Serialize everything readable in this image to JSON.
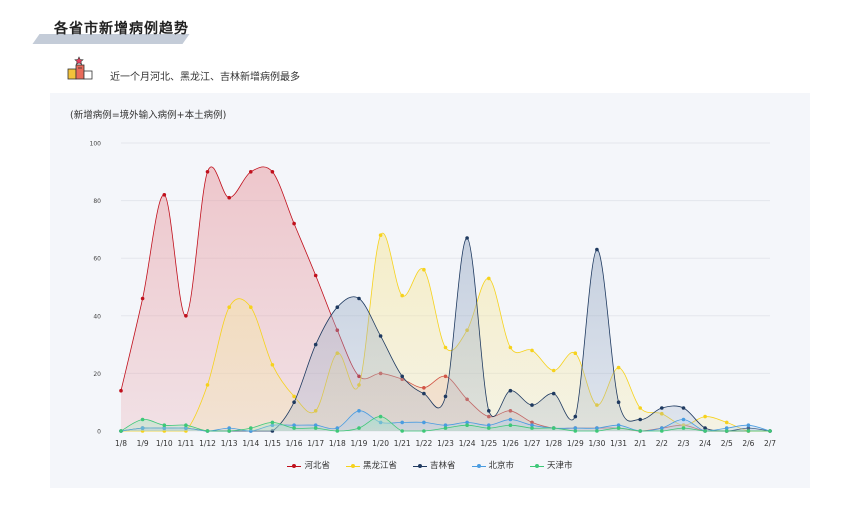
{
  "header": {
    "title": "各省市新增病例趋势"
  },
  "summary": {
    "text": "近一个月河北、黑龙江、吉林新增病例最多"
  },
  "panel": {
    "note": "(新增病例=境外输入病例+本土病例)"
  },
  "colors": {
    "title_stripe": "#c4ccd8",
    "panel_bg": "#f4f6fa",
    "grid": "#e3e6ec"
  },
  "chart_data": {
    "type": "area",
    "title": "",
    "xlabel": "",
    "ylabel": "",
    "ylim": [
      0,
      100
    ],
    "yticks": [
      0,
      20,
      40,
      60,
      80,
      100
    ],
    "grid": true,
    "legend_position": "bottom",
    "categories": [
      "1/8",
      "1/9",
      "1/10",
      "1/11",
      "1/12",
      "1/13",
      "1/14",
      "1/15",
      "1/16",
      "1/17",
      "1/18",
      "1/19",
      "1/20",
      "1/21",
      "1/22",
      "1/23",
      "1/24",
      "1/25",
      "1/26",
      "1/27",
      "1/28",
      "1/29",
      "1/30",
      "1/31",
      "2/1",
      "2/2",
      "2/3",
      "2/4",
      "2/5",
      "2/6",
      "2/7"
    ],
    "series": [
      {
        "name": "河北省",
        "color": "#c0101c",
        "fill": "#e8a0a6",
        "values": [
          14,
          46,
          82,
          40,
          90,
          81,
          90,
          90,
          72,
          54,
          35,
          19,
          20,
          18,
          15,
          19,
          11,
          5,
          7,
          3,
          1,
          1,
          1,
          1,
          0,
          1,
          2,
          0,
          0,
          0,
          0
        ]
      },
      {
        "name": "黑龙江省",
        "color": "#f6d21c",
        "fill": "#f6e7a0",
        "values": [
          0,
          0,
          0,
          0,
          16,
          43,
          43,
          23,
          12,
          7,
          27,
          16,
          68,
          47,
          56,
          29,
          35,
          53,
          29,
          28,
          21,
          27,
          9,
          22,
          8,
          6,
          2,
          5,
          3,
          0,
          0
        ]
      },
      {
        "name": "吉林省",
        "color": "#1f3a60",
        "fill": "#9fb0c8",
        "values": [
          0,
          1,
          1,
          1,
          0,
          0,
          0,
          0,
          10,
          30,
          43,
          46,
          33,
          19,
          13,
          12,
          67,
          7,
          14,
          9,
          13,
          5,
          63,
          10,
          4,
          8,
          8,
          1,
          0,
          1,
          0
        ]
      },
      {
        "name": "北京市",
        "color": "#4a9ce0",
        "fill": "#a8cdf2",
        "values": [
          0,
          1,
          1,
          1,
          0,
          1,
          0,
          2,
          2,
          2,
          1,
          7,
          3,
          3,
          3,
          2,
          3,
          2,
          4,
          2,
          1,
          1,
          1,
          2,
          0,
          1,
          4,
          0,
          1,
          2,
          0
        ]
      },
      {
        "name": "天津市",
        "color": "#3ec878",
        "fill": "#a6e8c0",
        "values": [
          0,
          4,
          2,
          2,
          0,
          0,
          1,
          3,
          1,
          1,
          0,
          1,
          5,
          0,
          0,
          1,
          2,
          1,
          2,
          1,
          1,
          0,
          0,
          1,
          0,
          0,
          1,
          0,
          0,
          0,
          0
        ]
      }
    ]
  }
}
